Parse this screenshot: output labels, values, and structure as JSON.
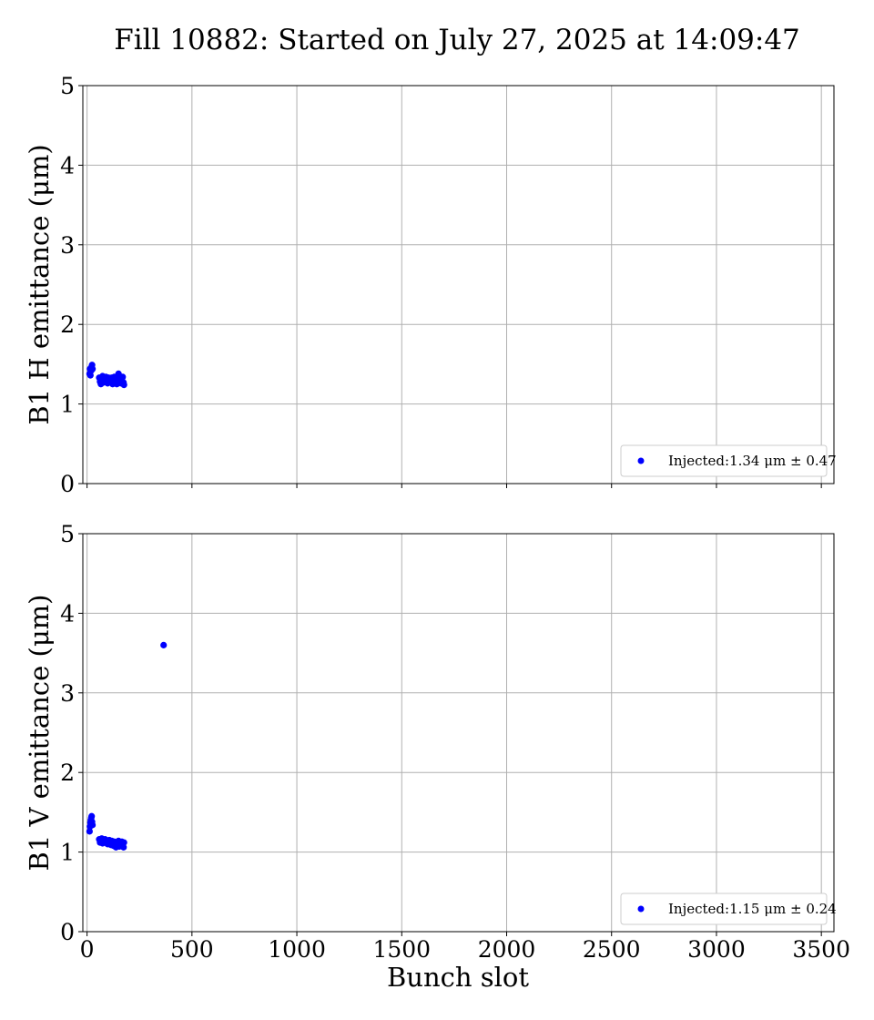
{
  "figure": {
    "title": "Fill 10882: Started on July 27, 2025 at 14:09:47",
    "xlabel": "Bunch slot"
  },
  "chart_data": [
    {
      "type": "scatter",
      "ylabel": "B1 H emittance (μm)",
      "xlim": [
        -20,
        3560
      ],
      "ylim": [
        0,
        5
      ],
      "xticks": [
        0,
        500,
        1000,
        1500,
        2000,
        2500,
        3000,
        3500
      ],
      "xtick_labels_visible": false,
      "yticks": [
        0,
        1,
        2,
        3,
        4,
        5
      ],
      "grid": true,
      "legend_position": "lower-right",
      "marker_color": "#0000ff",
      "series": [
        {
          "name": "Injected:1.34 μm ± 0.47",
          "points": [
            [
              12,
              1.38
            ],
            [
              14,
              1.44
            ],
            [
              16,
              1.36
            ],
            [
              18,
              1.45
            ],
            [
              20,
              1.42
            ],
            [
              22,
              1.47
            ],
            [
              24,
              1.49
            ],
            [
              26,
              1.44
            ],
            [
              58,
              1.33
            ],
            [
              62,
              1.28
            ],
            [
              66,
              1.25
            ],
            [
              70,
              1.3
            ],
            [
              74,
              1.35
            ],
            [
              78,
              1.27
            ],
            [
              82,
              1.32
            ],
            [
              86,
              1.29
            ],
            [
              90,
              1.34
            ],
            [
              94,
              1.31
            ],
            [
              98,
              1.26
            ],
            [
              102,
              1.33
            ],
            [
              106,
              1.29
            ],
            [
              110,
              1.31
            ],
            [
              114,
              1.27
            ],
            [
              118,
              1.33
            ],
            [
              122,
              1.25
            ],
            [
              126,
              1.3
            ],
            [
              130,
              1.34
            ],
            [
              134,
              1.28
            ],
            [
              138,
              1.31
            ],
            [
              142,
              1.25
            ],
            [
              146,
              1.33
            ],
            [
              150,
              1.38
            ],
            [
              154,
              1.29
            ],
            [
              158,
              1.32
            ],
            [
              162,
              1.26
            ],
            [
              166,
              1.31
            ],
            [
              170,
              1.34
            ],
            [
              174,
              1.27
            ],
            [
              176,
              1.24
            ]
          ]
        }
      ]
    },
    {
      "type": "scatter",
      "ylabel": "B1 V emittance (μm)",
      "xlim": [
        -20,
        3560
      ],
      "ylim": [
        0,
        5
      ],
      "xticks": [
        0,
        500,
        1000,
        1500,
        2000,
        2500,
        3000,
        3500
      ],
      "xtick_labels_visible": true,
      "yticks": [
        0,
        1,
        2,
        3,
        4,
        5
      ],
      "grid": true,
      "legend_position": "lower-right",
      "marker_color": "#0000ff",
      "series": [
        {
          "name": "Injected:1.15 μm ± 0.24",
          "points": [
            [
              12,
              1.26
            ],
            [
              14,
              1.32
            ],
            [
              16,
              1.37
            ],
            [
              18,
              1.4
            ],
            [
              20,
              1.43
            ],
            [
              22,
              1.45
            ],
            [
              24,
              1.38
            ],
            [
              26,
              1.34
            ],
            [
              58,
              1.16
            ],
            [
              62,
              1.12
            ],
            [
              66,
              1.14
            ],
            [
              70,
              1.17
            ],
            [
              74,
              1.11
            ],
            [
              78,
              1.15
            ],
            [
              82,
              1.13
            ],
            [
              86,
              1.16
            ],
            [
              90,
              1.12
            ],
            [
              94,
              1.14
            ],
            [
              98,
              1.1
            ],
            [
              102,
              1.13
            ],
            [
              106,
              1.15
            ],
            [
              110,
              1.11
            ],
            [
              114,
              1.09
            ],
            [
              118,
              1.14
            ],
            [
              122,
              1.12
            ],
            [
              126,
              1.08
            ],
            [
              130,
              1.13
            ],
            [
              134,
              1.1
            ],
            [
              138,
              1.06
            ],
            [
              142,
              1.12
            ],
            [
              146,
              1.09
            ],
            [
              150,
              1.14
            ],
            [
              154,
              1.07
            ],
            [
              158,
              1.11
            ],
            [
              162,
              1.08
            ],
            [
              166,
              1.13
            ],
            [
              170,
              1.1
            ],
            [
              174,
              1.06
            ],
            [
              176,
              1.12
            ],
            [
              365,
              3.6
            ]
          ]
        }
      ]
    }
  ]
}
